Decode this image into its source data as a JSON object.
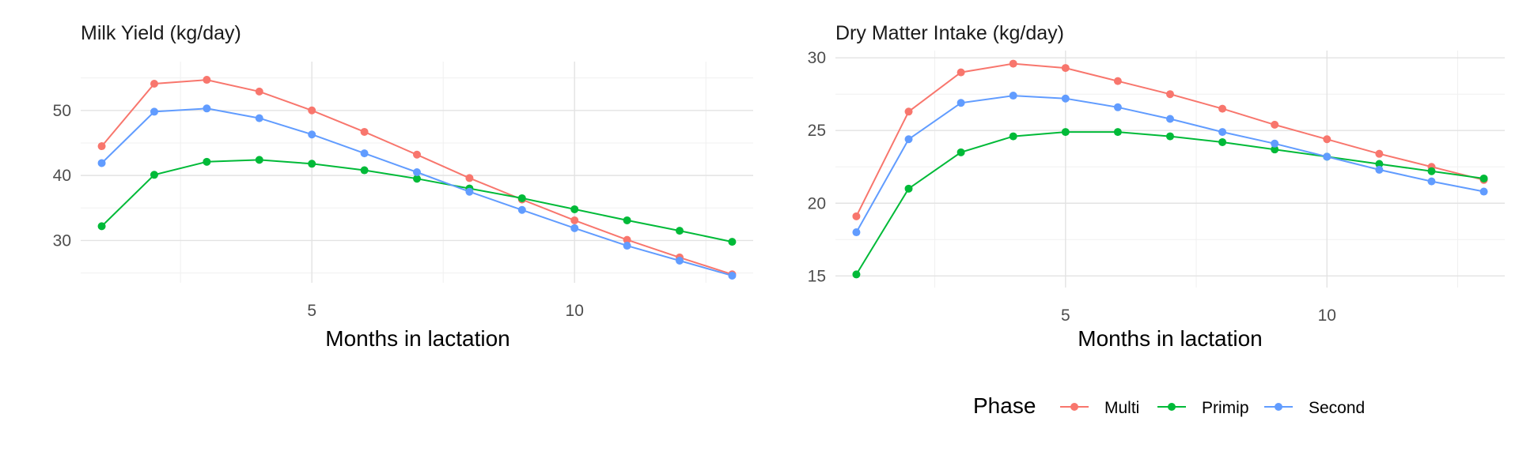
{
  "chart_data": [
    {
      "type": "line",
      "title": "Milk Yield (kg/day)",
      "xlabel": "Months in lactation",
      "ylabel": "",
      "x": [
        1,
        2,
        3,
        4,
        5,
        6,
        7,
        8,
        9,
        10,
        11,
        12,
        13
      ],
      "xlim": [
        0.6,
        13.4
      ],
      "ylim": [
        23.5,
        57.5
      ],
      "xticks": [
        5,
        10
      ],
      "yticks": [
        30,
        40,
        50
      ],
      "xminor": [
        2.5,
        7.5,
        12.5
      ],
      "yminor": [
        25,
        35,
        45,
        55
      ],
      "grid": true,
      "series": [
        {
          "name": "Multi",
          "color": "#F8766D",
          "values": [
            44.5,
            54.1,
            54.7,
            52.9,
            50.0,
            46.7,
            43.2,
            39.6,
            36.3,
            33.1,
            30.1,
            27.4,
            24.8
          ]
        },
        {
          "name": "Primip",
          "color": "#00BA38",
          "values": [
            32.2,
            40.1,
            42.1,
            42.4,
            41.8,
            40.8,
            39.5,
            38.0,
            36.5,
            34.8,
            33.1,
            31.5,
            29.8
          ]
        },
        {
          "name": "Second",
          "color": "#619CFF",
          "values": [
            41.9,
            49.8,
            50.3,
            48.8,
            46.3,
            43.4,
            40.5,
            37.5,
            34.7,
            31.9,
            29.2,
            26.9,
            24.6
          ]
        }
      ]
    },
    {
      "type": "line",
      "title": "Dry Matter Intake (kg/day)",
      "xlabel": "Months in lactation",
      "ylabel": "",
      "x": [
        1,
        2,
        3,
        4,
        5,
        6,
        7,
        8,
        9,
        10,
        11,
        12,
        13
      ],
      "xlim": [
        0.6,
        13.4
      ],
      "ylim": [
        14.2,
        30.5
      ],
      "xticks": [
        5,
        10
      ],
      "yticks": [
        15,
        20,
        25,
        30
      ],
      "xminor": [
        2.5,
        7.5,
        12.5
      ],
      "yminor": [
        17.5,
        22.5,
        27.5
      ],
      "grid": true,
      "series": [
        {
          "name": "Multi",
          "color": "#F8766D",
          "values": [
            19.1,
            26.3,
            29.0,
            29.6,
            29.3,
            28.4,
            27.5,
            26.5,
            25.4,
            24.4,
            23.4,
            22.5,
            21.6
          ]
        },
        {
          "name": "Primip",
          "color": "#00BA38",
          "values": [
            15.1,
            21.0,
            23.5,
            24.6,
            24.9,
            24.9,
            24.6,
            24.2,
            23.7,
            23.2,
            22.7,
            22.2,
            21.7
          ]
        },
        {
          "name": "Second",
          "color": "#619CFF",
          "values": [
            18.0,
            24.4,
            26.9,
            27.4,
            27.2,
            26.6,
            25.8,
            24.9,
            24.1,
            23.2,
            22.3,
            21.5,
            20.8
          ]
        }
      ]
    }
  ],
  "legend": {
    "title": "Phase",
    "position": "bottom",
    "items": [
      {
        "label": "Multi",
        "color": "#F8766D"
      },
      {
        "label": "Primip",
        "color": "#00BA38"
      },
      {
        "label": "Second",
        "color": "#619CFF"
      }
    ]
  }
}
